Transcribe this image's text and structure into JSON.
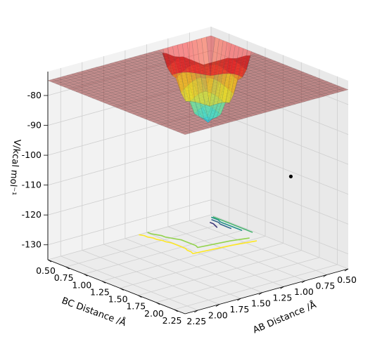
{
  "chart_data": {
    "type": "surface3d",
    "title": "",
    "xlabel": "AB Distance /Å",
    "ylabel": "BC Distance /Å",
    "zlabel": "V/kcal mol⁻¹",
    "x_ticks": [
      "0.50",
      "0.75",
      "1.00",
      "1.25",
      "1.50",
      "1.75",
      "2.00",
      "2.25"
    ],
    "y_ticks": [
      "0.50",
      "0.75",
      "1.00",
      "1.25",
      "1.50",
      "1.75",
      "2.00",
      "2.25"
    ],
    "z_ticks": [
      "-80",
      "-90",
      "-100",
      "-110",
      "-120",
      "-130"
    ],
    "xlim": [
      0.5,
      2.4
    ],
    "ylim": [
      0.5,
      2.4
    ],
    "zlim": [
      -135,
      -72
    ],
    "surface_colormap": "jet",
    "contour_colormap": "viridis",
    "surface_clip_level": -75,
    "grid": true,
    "marker": {
      "x": 1.0,
      "y": 2.2,
      "z": -102,
      "color": "#000000"
    }
  }
}
